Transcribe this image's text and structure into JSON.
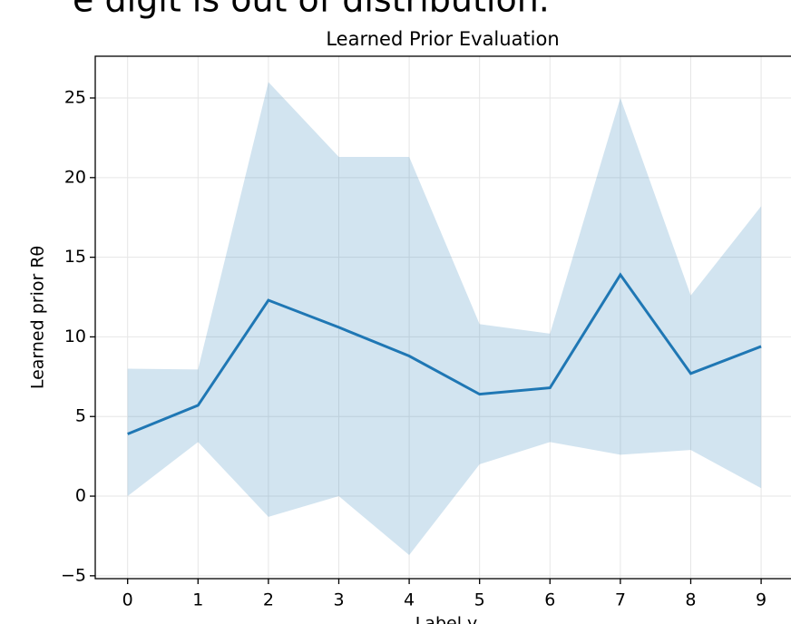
{
  "page_heading": "e digit is out of distribution.",
  "chart_data": {
    "type": "line",
    "title": "Learned Prior Evaluation",
    "xlabel": "Label y",
    "ylabel": "Learned prior Rθ",
    "x": [
      0,
      1,
      2,
      3,
      4,
      5,
      6,
      7,
      8,
      9
    ],
    "series": [
      {
        "color": "#1f77b4",
        "values": [
          3.9,
          5.7,
          12.3,
          10.6,
          8.8,
          6.4,
          6.8,
          13.9,
          7.7,
          9.4
        ]
      }
    ],
    "band": {
      "color": "#1f77b4",
      "upper": [
        8.0,
        7.95,
        26.0,
        21.3,
        21.3,
        10.8,
        10.2,
        25.0,
        12.6,
        18.2
      ],
      "lower": [
        0,
        3.4,
        -1.3,
        0,
        -3.7,
        2.0,
        3.4,
        2.6,
        2.9,
        0.5
      ]
    },
    "xlim": [
      -0.46,
      9.45
    ],
    "ylim": [
      -5.18,
      27.62
    ],
    "xticks": [
      0,
      1,
      2,
      3,
      4,
      5,
      6,
      7,
      8,
      9
    ],
    "yticks": [
      {
        "value": -5,
        "label": "−5"
      },
      0,
      5,
      10,
      15,
      20,
      25
    ],
    "grid": true
  }
}
